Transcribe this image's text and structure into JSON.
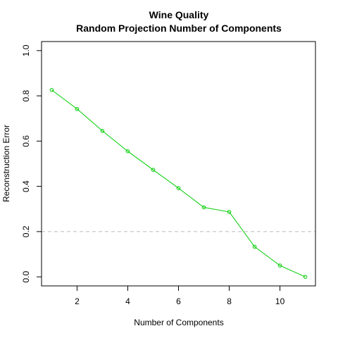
{
  "chart_data": {
    "type": "line",
    "title": "Wine Quality",
    "subtitle": "Random Projection Number of Components",
    "xlabel": "Number of Components",
    "ylabel": "Reconstruction Error",
    "xlim": [
      0.6,
      11.4
    ],
    "ylim": [
      -0.04,
      1.04
    ],
    "x_ticks": [
      2,
      4,
      6,
      8,
      10
    ],
    "y_ticks": [
      0.0,
      0.2,
      0.4,
      0.6,
      0.8,
      1.0
    ],
    "x_tick_labels": [
      "2",
      "4",
      "6",
      "8",
      "10"
    ],
    "y_tick_labels": [
      "0.0",
      "0.2",
      "0.4",
      "0.6",
      "0.8",
      "1.0"
    ],
    "grid": false,
    "series": [
      {
        "color": "#00cc00",
        "x": [
          1,
          2,
          3,
          4,
          5,
          6,
          7,
          8,
          9,
          10,
          11
        ],
        "y": [
          0.826,
          0.742,
          0.645,
          0.555,
          0.473,
          0.392,
          0.307,
          0.287,
          0.133,
          0.05,
          0.0
        ]
      }
    ],
    "reference_line": {
      "y": 0.2,
      "color": "#bbbbbb",
      "style": "dashed"
    }
  }
}
